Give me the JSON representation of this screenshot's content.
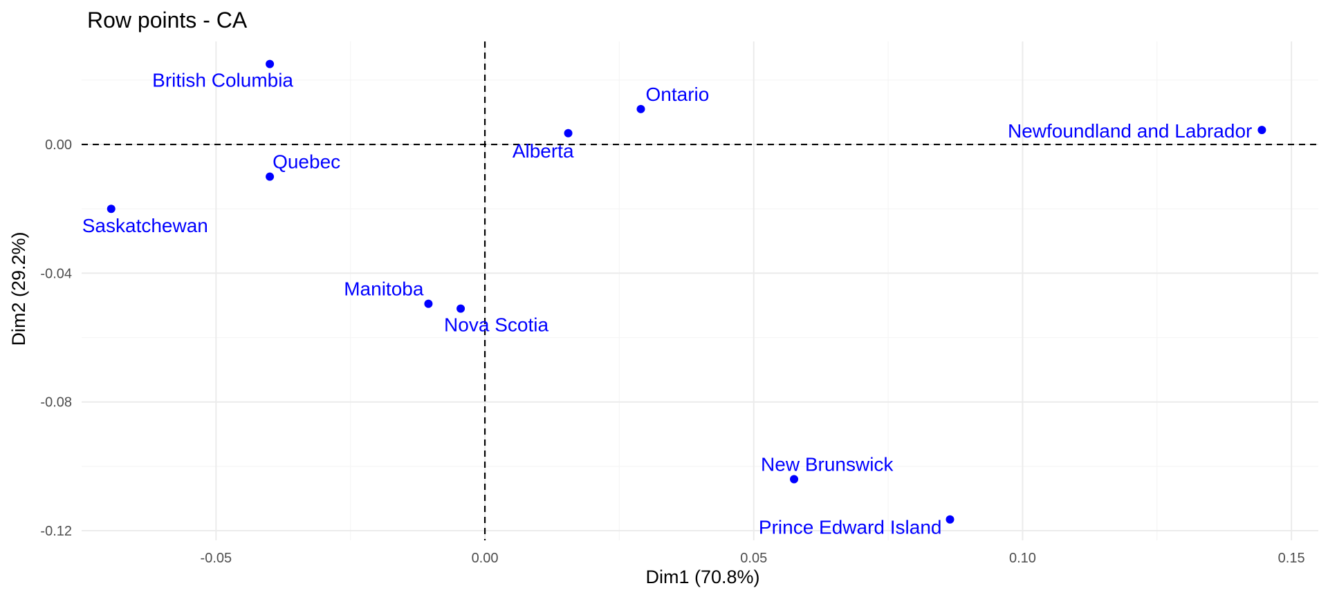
{
  "chart_data": {
    "type": "scatter",
    "title": "Row points - CA",
    "xlabel": "Dim1 (70.8%)",
    "ylabel": "Dim2 (29.2%)",
    "xlim": [
      -0.075,
      0.155
    ],
    "ylim": [
      -0.123,
      0.032
    ],
    "x_ticks": [
      -0.05,
      0.0,
      0.05,
      0.1,
      0.15
    ],
    "x_tick_labels": [
      "-0.05",
      "0.00",
      "0.05",
      "0.10",
      "0.15"
    ],
    "y_ticks": [
      -0.12,
      -0.08,
      -0.04,
      0.0
    ],
    "y_tick_labels": [
      "-0.12",
      "-0.08",
      "-0.04",
      "0.00"
    ],
    "grid": true,
    "reference_lines": {
      "x": 0,
      "y": 0,
      "style": "dashed"
    },
    "point_color": "#0000ff",
    "points": [
      {
        "label": "British Columbia",
        "x": -0.04,
        "y": 0.025
      },
      {
        "label": "Ontario",
        "x": 0.029,
        "y": 0.011
      },
      {
        "label": "Alberta",
        "x": 0.0155,
        "y": 0.0035
      },
      {
        "label": "Newfoundland and Labrador",
        "x": 0.1445,
        "y": 0.0045
      },
      {
        "label": "Quebec",
        "x": -0.04,
        "y": -0.01
      },
      {
        "label": "Saskatchewan",
        "x": -0.0695,
        "y": -0.02
      },
      {
        "label": "Manitoba",
        "x": -0.0105,
        "y": -0.0495
      },
      {
        "label": "Nova Scotia",
        "x": -0.0045,
        "y": -0.051
      },
      {
        "label": "New Brunswick",
        "x": 0.0575,
        "y": -0.104
      },
      {
        "label": "Prince Edward Island",
        "x": 0.0865,
        "y": -0.1165
      }
    ]
  }
}
